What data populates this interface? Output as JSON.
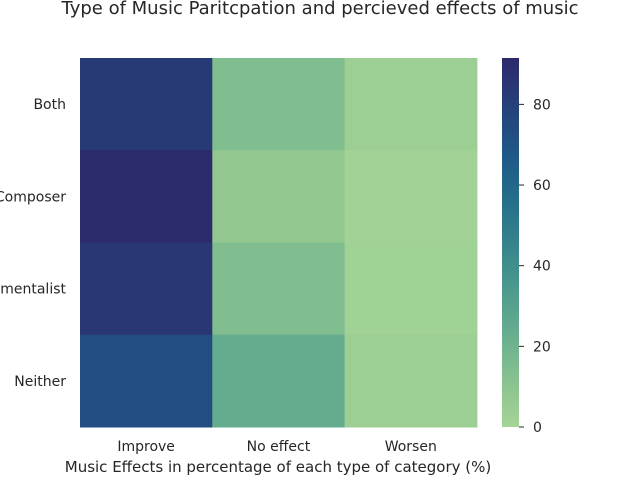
{
  "chart_data": {
    "type": "heatmap",
    "title": "Type of Music Paritcpation and percieved effects of music",
    "xlabel": "Music Effects in percentage of each type of category (%)",
    "ylabel": "",
    "x_categories": [
      "Improve",
      "No effect",
      "Worsen"
    ],
    "y_categories": [
      "Both",
      "Composer",
      "Instrumentalist",
      "Neither"
    ],
    "values": [
      [
        83,
        14,
        3
      ],
      [
        91,
        7,
        1
      ],
      [
        84,
        14,
        2
      ],
      [
        73,
        24,
        3
      ]
    ],
    "colorbar": {
      "min": 0,
      "max": 91.5,
      "ticks": [
        0,
        20,
        40,
        60,
        80
      ]
    },
    "colormap": [
      "#a5d496",
      "#8ec590",
      "#74b68f",
      "#5ca68f",
      "#47958d",
      "#35838c",
      "#26718b",
      "#1f5f88",
      "#224d82",
      "#283b77",
      "#2c2a6a"
    ]
  }
}
